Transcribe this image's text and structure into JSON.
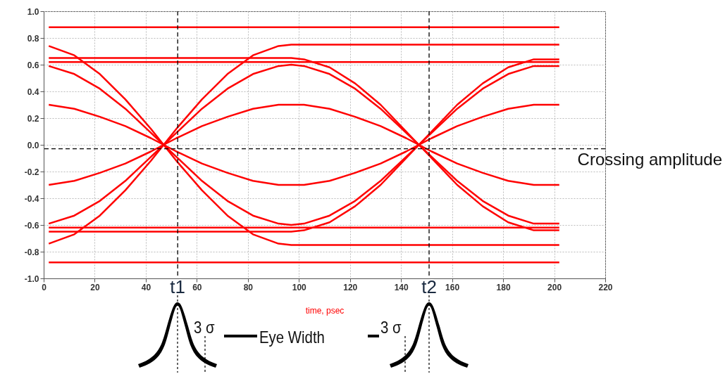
{
  "chart_data": {
    "type": "line",
    "xlabel": "time, psec",
    "x": [
      2,
      12,
      22,
      32,
      42,
      47,
      52,
      62,
      72,
      82,
      92,
      97,
      102,
      112,
      122,
      132,
      142,
      147,
      152,
      162,
      172,
      182,
      192,
      202
    ],
    "series": [
      {
        "color": "#ff0000",
        "values": [
          0.88,
          0.88,
          0.88,
          0.88,
          0.88,
          0.88,
          0.88,
          0.88,
          0.88,
          0.88,
          0.88,
          0.88,
          0.88,
          0.88,
          0.88,
          0.88,
          0.88,
          0.88,
          0.88,
          0.88,
          0.88,
          0.88,
          0.88,
          0.88
        ]
      },
      {
        "color": "#ff0000",
        "values": [
          0.62,
          0.62,
          0.62,
          0.62,
          0.62,
          0.62,
          0.62,
          0.62,
          0.62,
          0.62,
          0.62,
          0.62,
          0.62,
          0.62,
          0.62,
          0.62,
          0.62,
          0.62,
          0.62,
          0.62,
          0.62,
          0.62,
          0.62,
          0.62
        ]
      },
      {
        "color": "#ff0000",
        "values": [
          -0.88,
          -0.88,
          -0.88,
          -0.88,
          -0.88,
          -0.88,
          -0.88,
          -0.88,
          -0.88,
          -0.88,
          -0.88,
          -0.88,
          -0.88,
          -0.88,
          -0.88,
          -0.88,
          -0.88,
          -0.88,
          -0.88,
          -0.88,
          -0.88,
          -0.88,
          -0.88,
          -0.88
        ]
      },
      {
        "color": "#ff0000",
        "values": [
          -0.62,
          -0.62,
          -0.62,
          -0.62,
          -0.62,
          -0.62,
          -0.62,
          -0.62,
          -0.62,
          -0.62,
          -0.62,
          -0.62,
          -0.62,
          -0.62,
          -0.62,
          -0.62,
          -0.62,
          -0.62,
          -0.62,
          -0.62,
          -0.62,
          -0.62,
          -0.62,
          -0.62
        ]
      },
      {
        "color": "#ff0000",
        "values": [
          -0.59,
          -0.53,
          -0.42,
          -0.27,
          -0.09,
          0,
          0.09,
          0.27,
          0.42,
          0.53,
          0.59,
          0.6,
          0.59,
          0.53,
          0.42,
          0.27,
          0.09,
          0,
          -0.09,
          -0.27,
          -0.42,
          -0.53,
          -0.59,
          -0.59
        ]
      },
      {
        "color": "#ff0000",
        "values": [
          -0.3,
          -0.27,
          -0.21,
          -0.14,
          -0.05,
          0,
          0.05,
          0.14,
          0.21,
          0.27,
          0.3,
          0.3,
          0.3,
          0.27,
          0.21,
          0.14,
          0.05,
          0,
          -0.05,
          -0.14,
          -0.21,
          -0.27,
          -0.3,
          -0.3
        ]
      },
      {
        "color": "#ff0000",
        "values": [
          0.59,
          0.53,
          0.42,
          0.27,
          0.09,
          0,
          -0.09,
          -0.27,
          -0.42,
          -0.53,
          -0.59,
          -0.6,
          -0.59,
          -0.53,
          -0.42,
          -0.27,
          -0.09,
          0,
          0.09,
          0.27,
          0.42,
          0.53,
          0.59,
          0.59
        ]
      },
      {
        "color": "#ff0000",
        "values": [
          0.3,
          0.27,
          0.21,
          0.14,
          0.05,
          0,
          -0.05,
          -0.14,
          -0.21,
          -0.27,
          -0.3,
          -0.3,
          -0.3,
          -0.27,
          -0.21,
          -0.14,
          -0.05,
          0,
          0.05,
          0.14,
          0.21,
          0.27,
          0.3,
          0.3
        ]
      },
      {
        "color": "#ff0000",
        "values": [
          -0.74,
          -0.67,
          -0.53,
          -0.34,
          -0.12,
          0,
          0.12,
          0.34,
          0.53,
          0.67,
          0.74,
          0.75,
          0.75,
          0.75,
          0.75,
          0.75,
          0.75,
          0.75,
          0.75,
          0.75,
          0.75,
          0.75,
          0.75,
          0.75
        ]
      },
      {
        "color": "#ff0000",
        "values": [
          0.74,
          0.67,
          0.53,
          0.34,
          0.12,
          0,
          -0.12,
          -0.34,
          -0.53,
          -0.67,
          -0.74,
          -0.75,
          -0.75,
          -0.75,
          -0.75,
          -0.75,
          -0.75,
          -0.75,
          -0.75,
          -0.75,
          -0.75,
          -0.75,
          -0.75,
          -0.75
        ]
      },
      {
        "color": "#ff0000",
        "values": [
          0.65,
          0.65,
          0.65,
          0.65,
          0.65,
          0.65,
          0.65,
          0.65,
          0.65,
          0.65,
          0.65,
          0.65,
          0.64,
          0.58,
          0.46,
          0.3,
          0.1,
          0,
          -0.1,
          -0.3,
          -0.46,
          -0.58,
          -0.64,
          -0.64
        ]
      },
      {
        "color": "#ff0000",
        "values": [
          -0.65,
          -0.65,
          -0.65,
          -0.65,
          -0.65,
          -0.65,
          -0.65,
          -0.65,
          -0.65,
          -0.65,
          -0.65,
          -0.65,
          -0.64,
          -0.58,
          -0.46,
          -0.3,
          -0.1,
          0,
          0.1,
          0.3,
          0.46,
          0.58,
          0.64,
          0.64
        ]
      }
    ],
    "xlim": [
      0,
      220
    ],
    "xticks": [
      0,
      20,
      40,
      60,
      80,
      100,
      120,
      140,
      160,
      180,
      200,
      220
    ],
    "ylim": [
      -1,
      1
    ],
    "yticks": [
      {
        "value": -1,
        "label": "-1.0"
      },
      -0.8,
      -0.6,
      -0.4,
      -0.2,
      {
        "value": 0,
        "label": "0.0"
      },
      0.2,
      0.4,
      0.6,
      0.8,
      {
        "value": 1,
        "label": "1.0"
      }
    ],
    "grid": true,
    "ref_lines": [
      {
        "axis": "x",
        "value": 52.5,
        "label": "t1",
        "color": "#000000",
        "line_style": "dashed"
      },
      {
        "axis": "x",
        "value": 151,
        "label": "t2",
        "color": "#000000",
        "line_style": "dashed"
      },
      {
        "axis": "y",
        "value": -0.03,
        "label": "Crossing amplitude",
        "color": "#000000",
        "line_style": "dashed"
      }
    ],
    "annotations": [
      "3 σ",
      "Eye Width",
      "3 σ"
    ]
  }
}
